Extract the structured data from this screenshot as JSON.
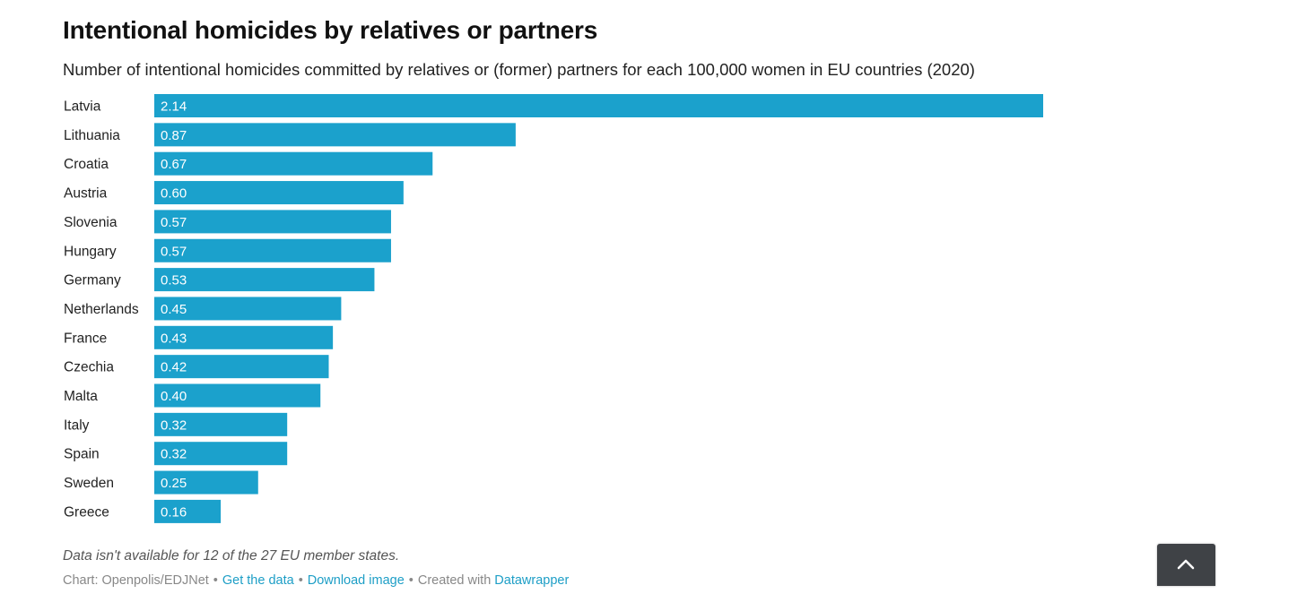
{
  "chart_data": {
    "type": "bar",
    "orientation": "horizontal",
    "title": "Intentional homicides by relatives or partners",
    "subtitle": "Number of intentional homicides committed by relatives or (former) partners for each 100,000 women in EU countries (2020)",
    "categories": [
      "Latvia",
      "Lithuania",
      "Croatia",
      "Austria",
      "Slovenia",
      "Hungary",
      "Germany",
      "Netherlands",
      "France",
      "Czechia",
      "Malta",
      "Italy",
      "Spain",
      "Sweden",
      "Greece"
    ],
    "values": [
      2.14,
      0.87,
      0.67,
      0.6,
      0.57,
      0.57,
      0.53,
      0.45,
      0.43,
      0.42,
      0.4,
      0.32,
      0.32,
      0.25,
      0.16
    ],
    "value_labels": [
      "2.14",
      "0.87",
      "0.67",
      "0.60",
      "0.57",
      "0.57",
      "0.53",
      "0.45",
      "0.43",
      "0.42",
      "0.40",
      "0.32",
      "0.32",
      "0.25",
      "0.16"
    ],
    "xlim": [
      0,
      2.14
    ],
    "bar_color": "#1ba1cc",
    "grid": false,
    "legend": "none"
  },
  "notes": "Data isn't available for 12 of the 27 EU member states.",
  "footer": {
    "source": "Chart: Openpolis/EDJNet",
    "get_data": "Get the data",
    "download": "Download image",
    "created_with": "Created with",
    "datawrapper": "Datawrapper",
    "separator": "•",
    "link_color": "#1d9ec6"
  },
  "scroll_top": {
    "icon": "chevron-up-icon",
    "color": "#3f4246"
  }
}
